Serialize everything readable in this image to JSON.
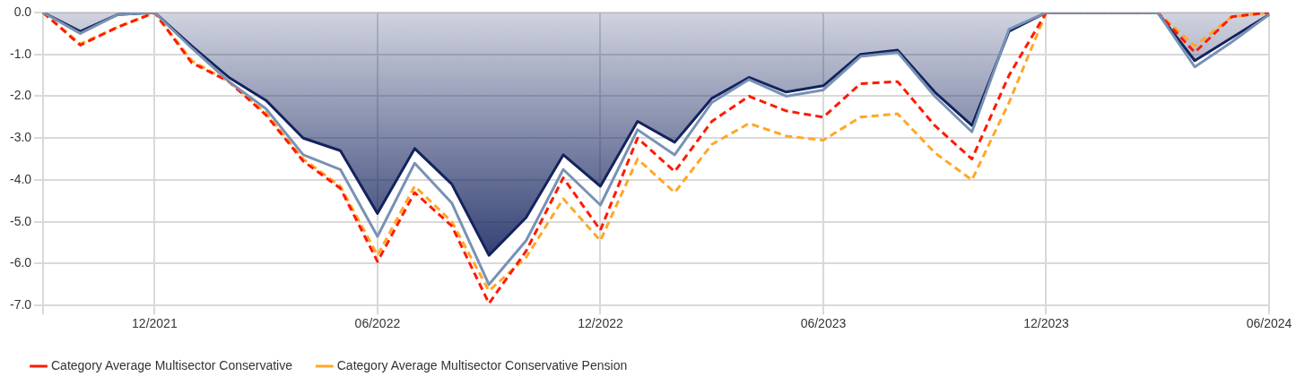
{
  "chart_data": {
    "type": "line",
    "categories": [
      null,
      null,
      null,
      "12/2021",
      null,
      null,
      null,
      null,
      null,
      "06/2022",
      null,
      null,
      null,
      null,
      null,
      "12/2022",
      null,
      null,
      null,
      null,
      null,
      "06/2023",
      null,
      null,
      null,
      null,
      null,
      "12/2023",
      null,
      null,
      null,
      null,
      null,
      "06/2024"
    ],
    "series": [
      {
        "type": "area",
        "color": "#14235e",
        "values": [
          0,
          -0.45,
          -0.05,
          0,
          -0.8,
          -1.55,
          -2.1,
          -3.0,
          -3.3,
          -4.8,
          -3.25,
          -4.1,
          -5.8,
          -4.9,
          -3.4,
          -4.15,
          -2.6,
          -3.1,
          -2.05,
          -1.55,
          -1.9,
          -1.75,
          -1.0,
          -0.9,
          -1.9,
          -2.7,
          -0.45,
          0,
          0,
          0,
          0,
          -1.15,
          -0.6,
          -0.05
        ]
      },
      {
        "color": "#7892b5",
        "values": [
          0,
          -0.5,
          -0.05,
          0,
          -0.85,
          -1.65,
          -2.3,
          -3.4,
          -3.75,
          -5.35,
          -3.6,
          -4.55,
          -6.5,
          -5.45,
          -3.75,
          -4.6,
          -2.8,
          -3.4,
          -2.15,
          -1.6,
          -2.0,
          -1.85,
          -1.05,
          -0.95,
          -2.0,
          -2.85,
          -0.4,
          0,
          0,
          0,
          0,
          -1.3,
          -0.7,
          -0.05
        ]
      },
      {
        "name": "Category Average Multisector Conservative",
        "color": "#ff1a00",
        "line_style": "dashed",
        "values": [
          0,
          -0.78,
          -0.35,
          0,
          -1.2,
          -1.65,
          -2.45,
          -3.55,
          -4.2,
          -5.95,
          -4.3,
          -5.1,
          -6.95,
          -5.7,
          -3.95,
          -5.2,
          -3.0,
          -3.8,
          -2.6,
          -2.0,
          -2.35,
          -2.5,
          -1.7,
          -1.65,
          -2.7,
          -3.5,
          -1.5,
          0,
          0,
          0,
          0,
          -0.95,
          -0.1,
          0
        ]
      },
      {
        "name": "Category Average Multisector Conservative Pension",
        "color": "#ffa726",
        "line_style": "dashed",
        "values": [
          0,
          -0.75,
          -0.35,
          0,
          -1.15,
          -1.65,
          -2.4,
          -3.5,
          -4.15,
          -5.8,
          -4.15,
          -5.0,
          -6.65,
          -5.85,
          -4.45,
          -5.45,
          -3.5,
          -4.3,
          -3.15,
          -2.65,
          -2.95,
          -3.05,
          -2.5,
          -2.42,
          -3.35,
          -4.0,
          -2.15,
          0,
          0,
          0,
          0,
          -0.8,
          -0.1,
          0
        ]
      }
    ],
    "ylim": [
      -7,
      0
    ],
    "yticks": [
      {
        "value": 0,
        "label": "0.0"
      },
      {
        "value": -1,
        "label": "-1.0"
      },
      {
        "value": -2,
        "label": "-2.0"
      },
      {
        "value": -3,
        "label": "-3.0"
      },
      {
        "value": -4,
        "label": "-4.0"
      },
      {
        "value": -5,
        "label": "-5.0"
      },
      {
        "value": -6,
        "label": "-6.0"
      },
      {
        "value": -7,
        "label": "-7.0"
      }
    ],
    "grid": true,
    "legend": "bottom",
    "marker": "none"
  }
}
